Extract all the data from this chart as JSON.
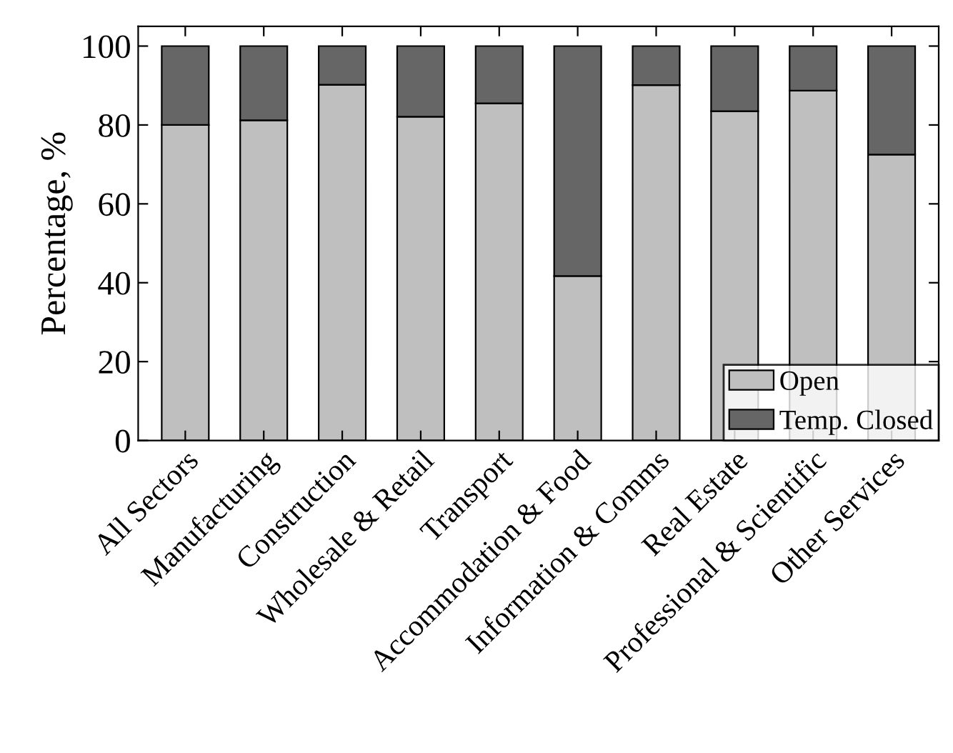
{
  "chart_data": {
    "type": "bar",
    "stacked": true,
    "ylabel": "Percentage, %",
    "categories": [
      "All Sectors",
      "Manufacturing",
      "Construction",
      "Wholesale & Retail",
      "Transport",
      "Accommodation & Food",
      "Information & Comms",
      "Real Estate",
      "Professional & Scientific",
      "Other Services"
    ],
    "series": [
      {
        "name": "Open",
        "color": "#bfbfbf",
        "values": [
          80,
          81.2,
          90.2,
          82.1,
          85.5,
          41.7,
          90.1,
          83.5,
          88.7,
          72.5
        ]
      },
      {
        "name": "Temp. Closed",
        "color": "#666666",
        "values": [
          20,
          18.8,
          9.8,
          17.9,
          14.5,
          58.3,
          9.9,
          16.5,
          11.3,
          27.5
        ]
      }
    ],
    "ylim": [
      0,
      105
    ],
    "yticks": [
      0,
      20,
      40,
      60,
      80,
      100
    ],
    "grid": false,
    "legend": "bottom right"
  }
}
